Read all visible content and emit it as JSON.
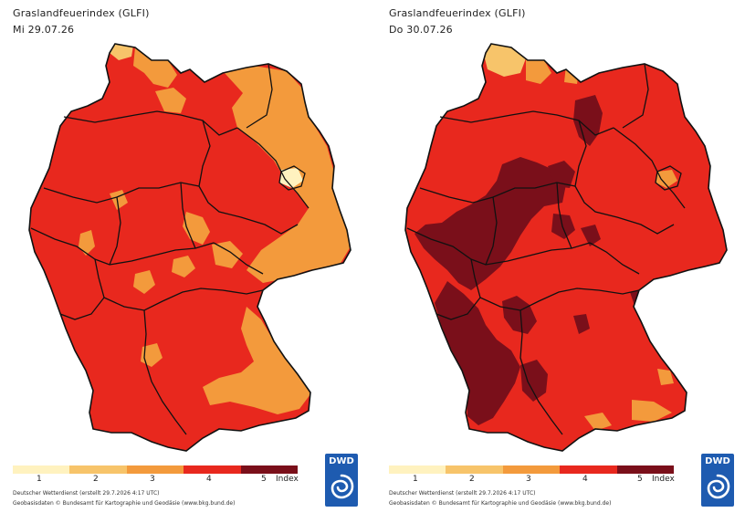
{
  "colors": {
    "index_1": "#fff2bf",
    "index_2": "#f7c46a",
    "index_3": "#f39a3c",
    "index_4": "#e8281e",
    "index_5": "#7a0f1a",
    "border": "#111111",
    "logo_blue": "#1e5bb0"
  },
  "legend": {
    "labels": [
      "1",
      "2",
      "3",
      "4",
      "5"
    ],
    "unit": "Index"
  },
  "credits": {
    "line1": "Deutscher Wetterdienst (erstellt 29.7.2026 4:17 UTC)",
    "line2": "Geobasisdaten © Bundesamt für Kartographie und Geodäsie (www.bkg.bund.de)"
  },
  "logo": {
    "text": "DWD",
    "icon": "dwd-spiral-icon"
  },
  "panels": [
    {
      "title": "Graslandfeuerindex (GLFI)",
      "date": "Mi 29.07.26",
      "dominant_index": 4,
      "notable_index_areas": [
        2,
        3
      ]
    },
    {
      "title": "Graslandfeuerindex (GLFI)",
      "date": "Do 30.07.26",
      "dominant_index": 4,
      "notable_index_areas": [
        2,
        3,
        5
      ]
    }
  ]
}
